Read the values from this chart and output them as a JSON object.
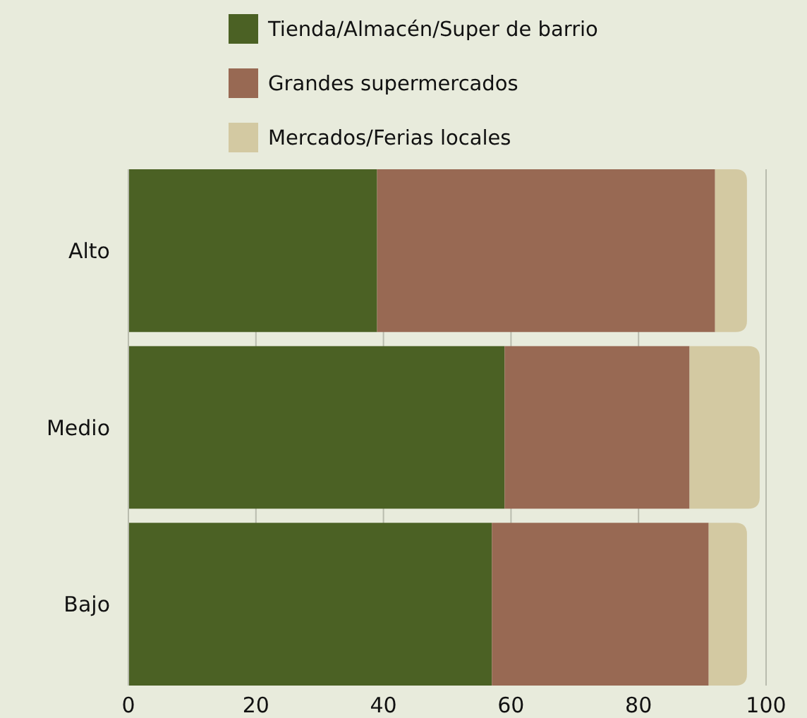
{
  "chart_data": {
    "type": "bar",
    "orientation": "horizontal",
    "stacked": true,
    "categories": [
      "Alto",
      "Medio",
      "Bajo"
    ],
    "series": [
      {
        "name": "Tienda/Almacén/Super de barrio",
        "color": "#4b6124",
        "values": [
          39,
          59,
          57
        ]
      },
      {
        "name": "Grandes supermercados",
        "color": "#986953",
        "values": [
          53,
          29,
          34
        ]
      },
      {
        "name": "Mercados/Ferias locales",
        "color": "#d3c9a2",
        "values": [
          5,
          11,
          6
        ]
      }
    ],
    "xlim": [
      0,
      100
    ],
    "xticks": [
      0,
      20,
      40,
      60,
      80,
      100
    ],
    "grid": "x",
    "legend": "top"
  }
}
